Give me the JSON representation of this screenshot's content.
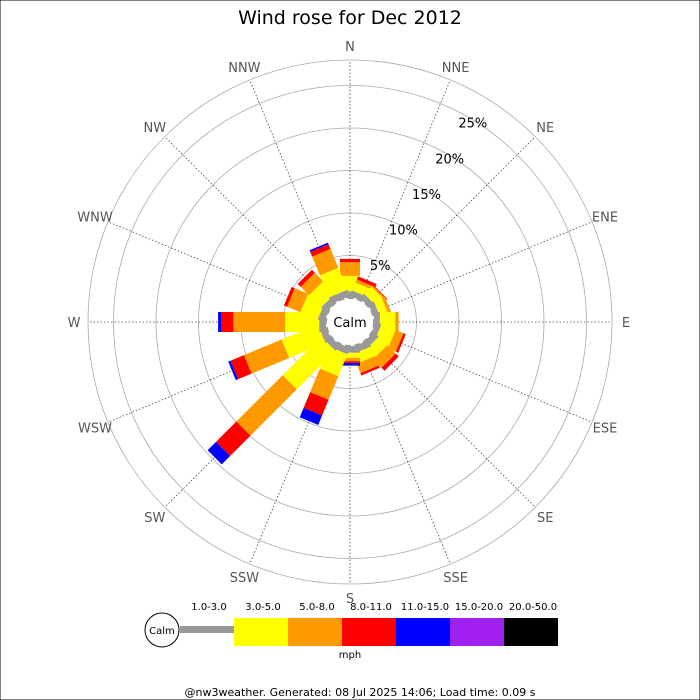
{
  "chart_data": {
    "type": "wind-rose",
    "title": "Wind rose for Dec 2012",
    "calm_label": "Calm",
    "unit_label": "mph",
    "footer": "@nw3weather. Generated: 08 Jul 2025 14:06; Load time: 0.09 s",
    "radial_ticks": [
      {
        "value": 5,
        "label": "5%"
      },
      {
        "value": 10,
        "label": "10%"
      },
      {
        "value": 15,
        "label": "15%"
      },
      {
        "value": 20,
        "label": "20%"
      },
      {
        "value": 25,
        "label": "25%"
      }
    ],
    "r_max": 28,
    "directions": [
      "N",
      "NNE",
      "NE",
      "ENE",
      "E",
      "ESE",
      "SE",
      "SSE",
      "S",
      "SSW",
      "SW",
      "WSW",
      "W",
      "WNW",
      "NW",
      "NNW"
    ],
    "bins": [
      {
        "label": "1.0-3.0",
        "color": "#999999"
      },
      {
        "label": "3.0-5.0",
        "color": "#ffff00"
      },
      {
        "label": "5.0-8.0",
        "color": "#ff9900"
      },
      {
        "label": "8.0-11.0",
        "color": "#ff0000"
      },
      {
        "label": "11.0-15.0",
        "color": "#0000ff"
      },
      {
        "label": "15.0-20.0",
        "color": "#a020f0"
      },
      {
        "label": "20.0-50.0",
        "color": "#000000"
      }
    ],
    "series": [
      {
        "direction": "N",
        "values": [
          0.8,
          1.8,
          1.6,
          0.4,
          0,
          0,
          0
        ]
      },
      {
        "direction": "NNE",
        "values": [
          0.7,
          1.0,
          0.4,
          0.4,
          0,
          0,
          0
        ]
      },
      {
        "direction": "NE",
        "values": [
          0.7,
          1.2,
          0.2,
          0.1,
          0,
          0,
          0
        ]
      },
      {
        "direction": "ENE",
        "values": [
          0.7,
          1.0,
          0.4,
          0,
          0,
          0,
          0
        ]
      },
      {
        "direction": "E",
        "values": [
          0.7,
          1.8,
          0.4,
          0,
          0,
          0,
          0
        ]
      },
      {
        "direction": "ESE",
        "values": [
          0.7,
          1.8,
          1.0,
          0.3,
          0,
          0,
          0
        ]
      },
      {
        "direction": "SE",
        "values": [
          0.8,
          1.4,
          1.4,
          0.5,
          0,
          0,
          0
        ]
      },
      {
        "direction": "SSE",
        "values": [
          0.8,
          1.2,
          1.2,
          0.3,
          0,
          0,
          0
        ]
      },
      {
        "direction": "S",
        "values": [
          0.8,
          0.6,
          0.4,
          0.2,
          0.3,
          0,
          0
        ]
      },
      {
        "direction": "SSW",
        "values": [
          0.8,
          2.8,
          3.0,
          2.0,
          1.2,
          0,
          0
        ]
      },
      {
        "direction": "SW",
        "values": [
          0.8,
          6.4,
          7.7,
          3.4,
          1.4,
          0,
          0
        ]
      },
      {
        "direction": "WSW",
        "values": [
          0.8,
          4.6,
          4.8,
          1.7,
          0.3,
          0,
          0
        ]
      },
      {
        "direction": "W",
        "values": [
          0.8,
          4.0,
          6.1,
          1.4,
          0.4,
          0,
          0
        ]
      },
      {
        "direction": "WNW",
        "values": [
          0.8,
          2.2,
          1.7,
          0.4,
          0,
          0,
          0
        ]
      },
      {
        "direction": "NW",
        "values": [
          0.8,
          2.0,
          1.4,
          0.5,
          0,
          0,
          0
        ]
      },
      {
        "direction": "NNW",
        "values": [
          0.8,
          2.8,
          2.4,
          0.6,
          0.2,
          0,
          0
        ]
      }
    ]
  }
}
